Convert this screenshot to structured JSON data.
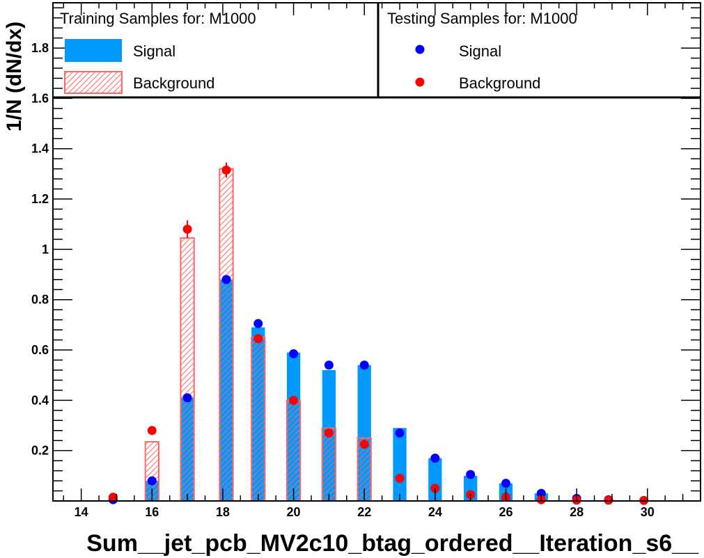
{
  "chart_data": {
    "type": "bar",
    "xlabel": "Sum__jet_pcb_MV2c10_btag_ordered__Iteration_s6__",
    "ylabel": "1/N (dN/dx)",
    "xlim": [
      13.2,
      31.5
    ],
    "ylim": [
      0,
      1.98
    ],
    "x_ticks": [
      14,
      16,
      18,
      20,
      22,
      24,
      26,
      28,
      30
    ],
    "y_ticks": [
      0.2,
      0.4,
      0.6,
      0.8,
      1,
      1.2,
      1.4,
      1.6,
      1.8
    ],
    "bin_halfwidth": 0.19,
    "grid": false,
    "legends": {
      "training": {
        "header": "Training Samples for: M1000",
        "entries": [
          "Signal",
          "Background"
        ]
      },
      "testing": {
        "header": "Testing Samples for: M1000",
        "entries": [
          "Signal",
          "Background"
        ]
      }
    },
    "series": [
      {
        "name": "Signal",
        "sample": "training",
        "style": "filled",
        "color": "#0099ff",
        "x": [
          16.0,
          17.0,
          18.1,
          19.0,
          20.0,
          21.0,
          22.0,
          23.0,
          24.0,
          25.0,
          26.0,
          27.0
        ],
        "values": [
          0.08,
          0.41,
          0.88,
          0.69,
          0.59,
          0.52,
          0.54,
          0.29,
          0.17,
          0.1,
          0.07,
          0.03
        ]
      },
      {
        "name": "Background",
        "sample": "training",
        "style": "hatched",
        "color": "#ff6666",
        "x": [
          16.0,
          17.0,
          18.1,
          19.0,
          20.0,
          21.0,
          22.0
        ],
        "values": [
          0.235,
          1.045,
          1.32,
          0.65,
          0.4,
          0.29,
          0.25
        ]
      },
      {
        "name": "Signal",
        "sample": "testing",
        "style": "points",
        "color": "#0000ff",
        "x": [
          14.9,
          16.0,
          17.0,
          18.1,
          19.0,
          20.0,
          21.0,
          22.0,
          23.0,
          24.0,
          25.0,
          26.0,
          27.0,
          28.0,
          28.9
        ],
        "values": [
          0.005,
          0.08,
          0.41,
          0.88,
          0.705,
          0.585,
          0.54,
          0.54,
          0.27,
          0.17,
          0.105,
          0.07,
          0.03,
          0.01,
          0.005
        ],
        "errors": [
          0,
          0,
          0,
          0,
          0,
          0,
          0,
          0,
          0,
          0,
          0,
          0,
          0,
          0,
          0
        ]
      },
      {
        "name": "Background",
        "sample": "testing",
        "style": "points",
        "color": "#ff0000",
        "x": [
          14.9,
          16.0,
          17.0,
          18.1,
          19.0,
          20.0,
          21.0,
          22.0,
          23.0,
          24.0,
          25.0,
          26.0,
          27.0,
          28.0,
          28.9,
          29.9
        ],
        "values": [
          0.015,
          0.28,
          1.08,
          1.315,
          0.645,
          0.4,
          0.27,
          0.225,
          0.09,
          0.05,
          0.025,
          0.015,
          0.005,
          0.003,
          0.003,
          0.002
        ],
        "errors": [
          0,
          0.01,
          0.035,
          0.03,
          0,
          0,
          0,
          0,
          0,
          0,
          0,
          0,
          0,
          0,
          0,
          0
        ]
      }
    ]
  }
}
